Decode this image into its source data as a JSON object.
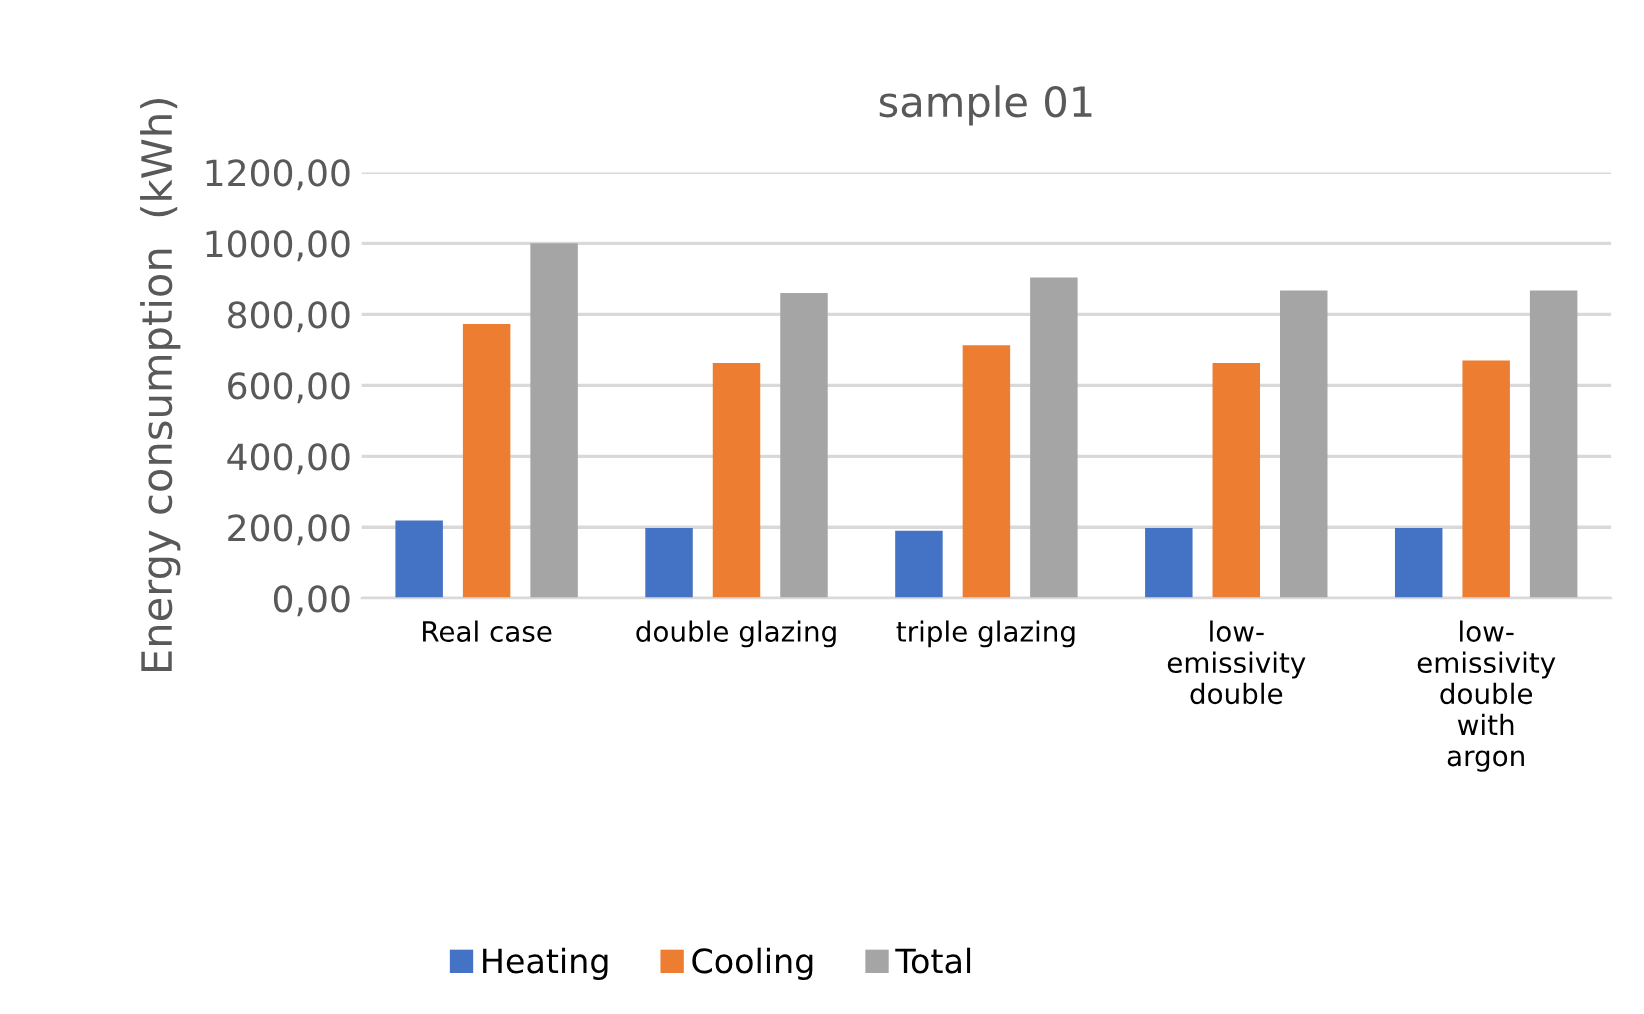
{
  "chart_data": {
    "type": "bar",
    "title": "sample 01",
    "ylabel": "Energy consumption  (kWh)",
    "categories": [
      "Real case",
      "double glazing",
      "triple glazing",
      "low-\nemissivity\ndouble",
      "low-\nemissivity\ndouble\nwith\nargon"
    ],
    "series": [
      {
        "name": "Heating",
        "color": "#4472c4",
        "values": [
          219,
          198,
          190,
          198,
          198
        ]
      },
      {
        "name": "Cooling",
        "color": "#ed7d31",
        "values": [
          773,
          663,
          713,
          663,
          670
        ]
      },
      {
        "name": "Total",
        "color": "#a5a5a5",
        "values": [
          1000,
          860,
          904,
          867,
          867
        ]
      }
    ],
    "ylim": [
      0,
      1200
    ],
    "yticks": [
      {
        "value": 0,
        "label": "0,00"
      },
      {
        "value": 200,
        "label": "200,00"
      },
      {
        "value": 400,
        "label": "400,00"
      },
      {
        "value": 600,
        "label": "600,00"
      },
      {
        "value": 800,
        "label": "800,00"
      },
      {
        "value": 1000,
        "label": "1000,00"
      },
      {
        "value": 1200,
        "label": "1200,00"
      }
    ],
    "grid": "y",
    "legend": "bottom"
  }
}
